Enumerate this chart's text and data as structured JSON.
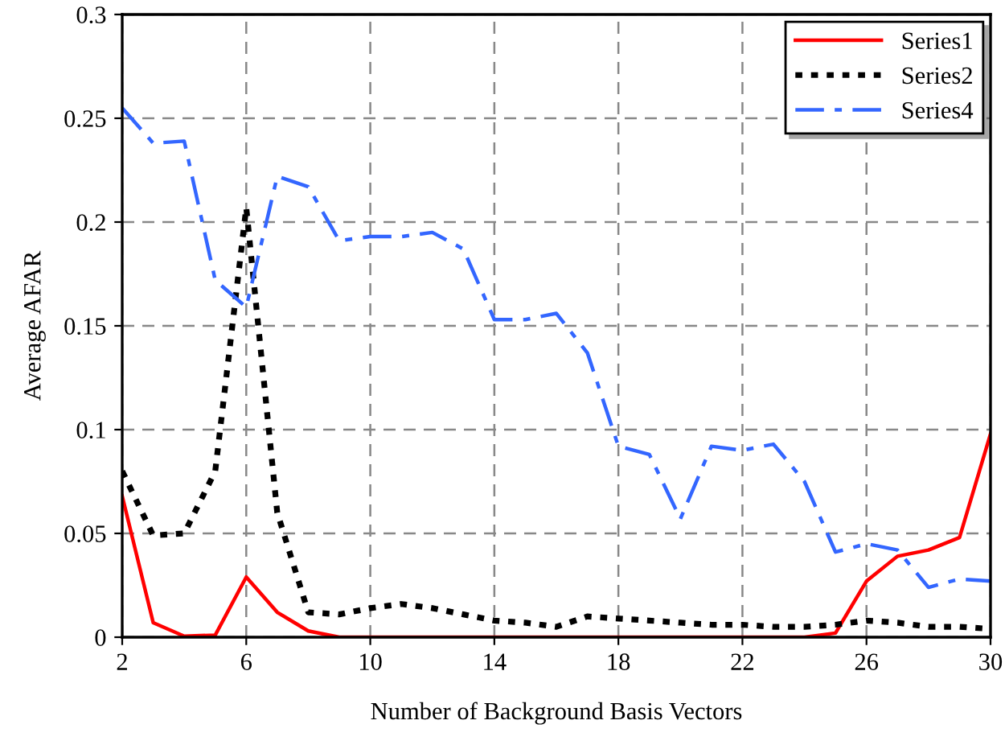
{
  "chart_data": {
    "type": "line",
    "xlabel": "Number of Background Basis Vectors",
    "ylabel": "Average AFAR",
    "x": [
      2,
      3,
      4,
      5,
      6,
      7,
      8,
      9,
      10,
      11,
      12,
      13,
      14,
      15,
      16,
      17,
      18,
      19,
      20,
      21,
      22,
      23,
      24,
      25,
      26,
      27,
      28,
      29,
      30
    ],
    "series": [
      {
        "name": "Series1",
        "color": "#ff0000",
        "line_style": "solid",
        "values": [
          0.068,
          0.007,
          0.0005,
          0.001,
          0.029,
          0.012,
          0.003,
          0,
          0,
          0,
          0,
          0,
          0,
          0,
          0,
          0,
          0,
          0,
          0,
          0,
          0,
          0,
          0,
          0.002,
          0.027,
          0.039,
          0.042,
          0.048,
          0.098
        ]
      },
      {
        "name": "Series2",
        "color": "#000000",
        "line_style": "dotted",
        "values": [
          0.08,
          0.049,
          0.05,
          0.08,
          0.207,
          0.06,
          0.012,
          0.011,
          0.014,
          0.016,
          0.014,
          0.011,
          0.008,
          0.007,
          0.005,
          0.01,
          0.009,
          0.008,
          0.007,
          0.006,
          0.006,
          0.005,
          0.005,
          0.006,
          0.008,
          0.007,
          0.005,
          0.005,
          0.004
        ]
      },
      {
        "name": "Series4",
        "color": "#3366ff",
        "line_style": "dashdot",
        "values": [
          0.255,
          0.238,
          0.239,
          0.172,
          0.159,
          0.222,
          0.217,
          0.191,
          0.193,
          0.193,
          0.195,
          0.187,
          0.153,
          0.153,
          0.156,
          0.137,
          0.092,
          0.088,
          0.057,
          0.092,
          0.09,
          0.093,
          0.075,
          0.041,
          0.045,
          0.042,
          0.024,
          0.028,
          0.027
        ]
      }
    ],
    "xlim": [
      2,
      30
    ],
    "xticks": [
      2,
      6,
      10,
      14,
      18,
      22,
      26,
      30
    ],
    "ylim": [
      0,
      0.3
    ],
    "yticks": [
      0,
      0.05,
      0.1,
      0.15,
      0.2,
      0.25,
      0.3
    ],
    "grid": true,
    "legend": "top right",
    "marker": "none"
  }
}
